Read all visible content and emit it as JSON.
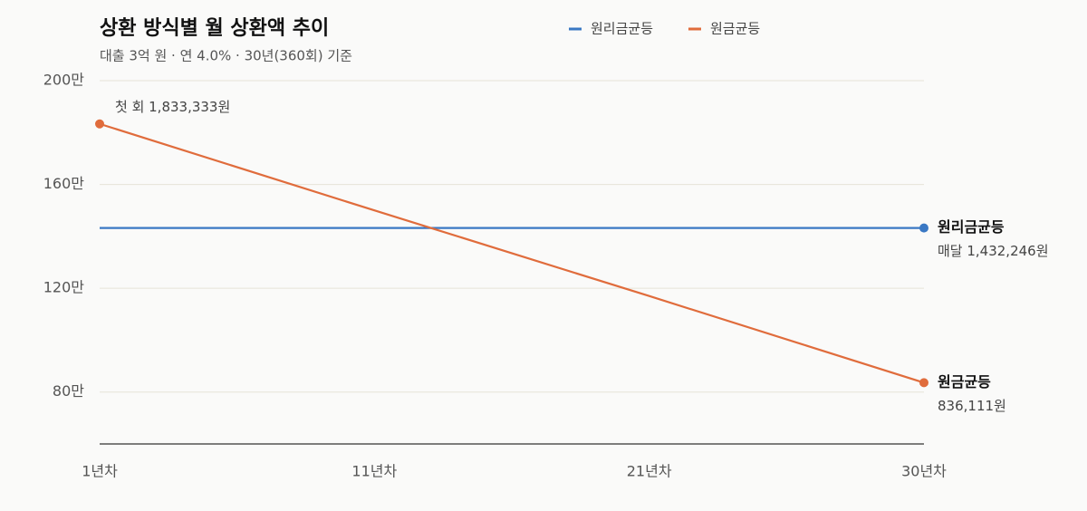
{
  "chart_data": {
    "type": "line",
    "title": "상환 방식별 월 상환액 추이",
    "subtitle": "대출 3억 원 · 연 4.0% · 30년(360회) 기준",
    "categories": [
      "1년차",
      "11년차",
      "21년차",
      "30년차"
    ],
    "series": [
      {
        "name": "원리금균등",
        "color": "#3a78c4",
        "values": [
          1432246,
          1432246,
          1432246,
          1432246
        ],
        "value_labels": [
          null,
          null,
          null,
          "매달 1,432,246원"
        ]
      },
      {
        "name": "원금균등",
        "color": "#e06c3c",
        "values": [
          1833333,
          1500000,
          1170000,
          836111
        ],
        "value_labels": [
          "첫 회 1,833,333원",
          null,
          null,
          "836,111원"
        ]
      }
    ],
    "ylim": [
      600000,
      2000000
    ],
    "yticks": [
      {
        "value": 800000,
        "label": "80만"
      },
      {
        "value": 1200000,
        "label": "120만"
      },
      {
        "value": 1600000,
        "label": "160만"
      },
      {
        "value": 2000000,
        "label": "200만"
      }
    ],
    "grid": true,
    "legend": "top"
  }
}
